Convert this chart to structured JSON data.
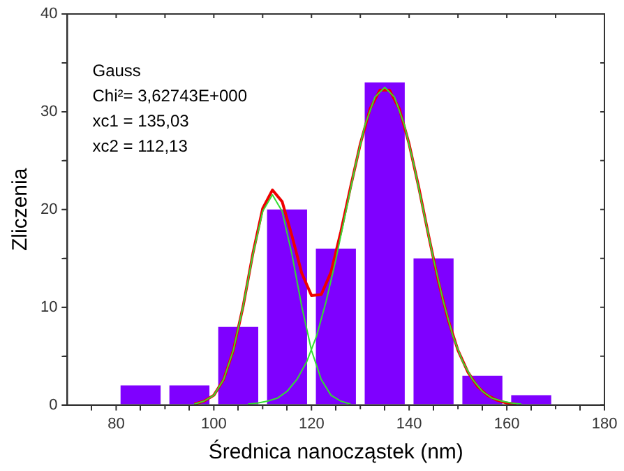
{
  "chart_data": {
    "type": "histogram",
    "xlabel": "Średnica nanocząstek (nm)",
    "ylabel": "Zliczenia",
    "annotations": [
      "Gauss",
      "Chi²= 3,62743E+000",
      "xc1 = 135,03",
      "xc2 = 112,13"
    ],
    "bins": [
      80,
      90,
      100,
      110,
      120,
      130,
      140,
      150,
      160,
      170
    ],
    "values": [
      2,
      2,
      8,
      20,
      16,
      33,
      15,
      3,
      1
    ],
    "color": "#7f00ff",
    "series": [
      {
        "type": "line",
        "color": "#33dd33",
        "x": [
          96,
          98,
          100,
          102,
          104,
          106,
          108,
          110,
          112,
          114,
          116,
          118,
          120,
          122,
          124,
          126,
          128
        ],
        "values": [
          0.1,
          0.4,
          1.0,
          2.6,
          5.6,
          10.1,
          15.4,
          19.8,
          21.5,
          19.8,
          15.4,
          10.1,
          5.6,
          2.6,
          1.0,
          0.4,
          0.1
        ]
      },
      {
        "type": "line",
        "color": "#33dd33",
        "x": [
          107,
          109,
          111,
          113,
          115,
          117,
          119,
          121,
          123,
          125,
          127,
          129,
          131,
          133,
          135,
          137,
          139,
          141,
          143,
          145,
          147,
          149,
          151,
          153,
          155,
          157,
          159,
          161,
          163
        ],
        "values": [
          0.1,
          0.2,
          0.4,
          0.7,
          1.4,
          2.6,
          4.4,
          7.0,
          10.6,
          14.9,
          19.7,
          24.5,
          28.7,
          31.5,
          32.5,
          31.5,
          28.7,
          24.5,
          19.7,
          14.9,
          10.6,
          7.0,
          4.4,
          2.6,
          1.4,
          0.7,
          0.4,
          0.2,
          0.1
        ]
      },
      {
        "type": "line",
        "color": "#ee0000",
        "x": [
          96,
          98,
          100,
          102,
          104,
          106,
          108,
          110,
          112,
          114,
          116,
          118,
          120,
          122,
          124,
          126,
          128,
          130,
          132,
          134,
          136,
          138,
          140,
          142,
          144,
          146,
          148,
          150,
          152,
          154,
          156,
          158,
          160,
          162
        ],
        "values": [
          0.1,
          0.4,
          1.0,
          2.6,
          5.6,
          10.1,
          15.5,
          20.1,
          22.0,
          20.8,
          17.3,
          13.5,
          11.2,
          11.3,
          13.6,
          17.7,
          22.3,
          26.7,
          30.3,
          32.2,
          32.2,
          30.3,
          26.7,
          22.2,
          17.3,
          12.6,
          8.7,
          5.6,
          3.4,
          1.9,
          1.0,
          0.5,
          0.2,
          0.1
        ]
      }
    ],
    "xlim": [
      70,
      180
    ],
    "xticks": [
      80,
      {
        "value": 90,
        "label": null
      },
      100,
      {
        "value": 110,
        "label": null
      },
      120,
      {
        "value": 130,
        "label": null
      },
      140,
      {
        "value": 150,
        "label": null
      },
      160,
      {
        "value": 170,
        "label": null
      },
      180
    ],
    "ylim": [
      0,
      40
    ],
    "yticks": [
      0,
      {
        "value": 5,
        "label": null
      },
      10,
      {
        "value": 15,
        "label": null
      },
      20,
      {
        "value": 25,
        "label": null
      },
      30,
      {
        "value": 35,
        "label": null
      },
      40
    ],
    "grid": false,
    "legend": false,
    "marker": "none",
    "line_style": "solid"
  }
}
